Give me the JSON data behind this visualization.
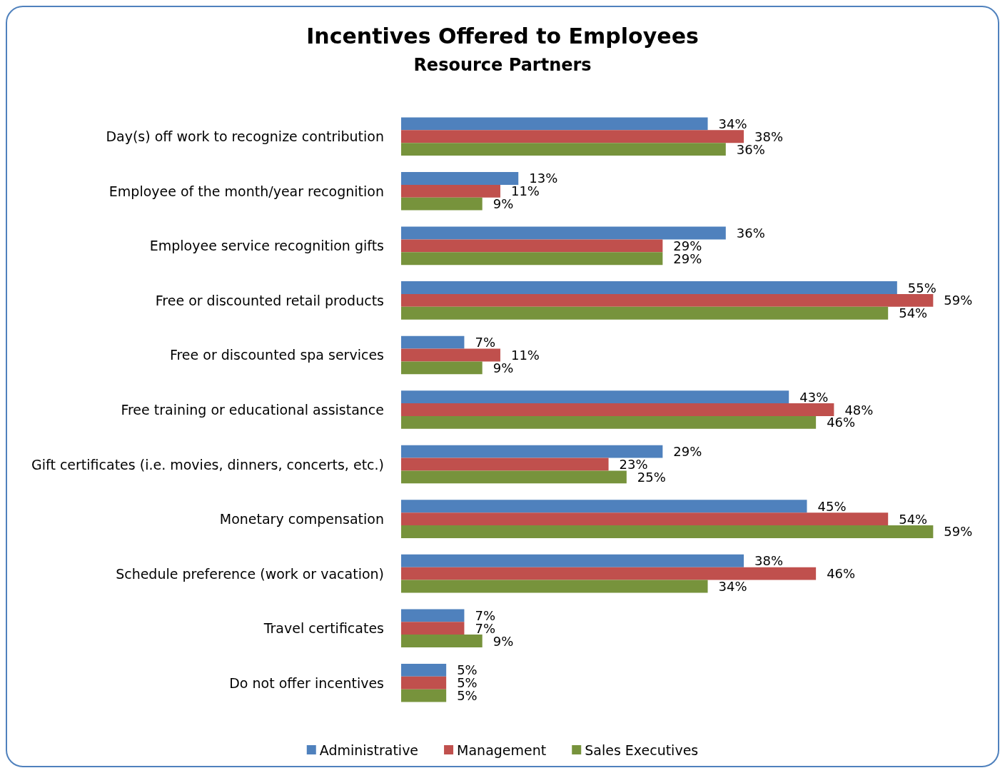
{
  "chart_data": {
    "type": "bar",
    "orientation": "horizontal",
    "title": "Incentives Offered to Employees",
    "subtitle": "Resource Partners",
    "categories": [
      "Day(s) off work to recognize contribution",
      "Employee of the month/year recognition",
      "Employee service recognition gifts",
      "Free or discounted retail products",
      "Free or discounted spa services",
      "Free training or educational assistance",
      "Gift certificates (i.e. movies, dinners, concerts, etc.)",
      "Monetary compensation",
      "Schedule preference (work or vacation)",
      "Travel certificates",
      "Do not offer incentives"
    ],
    "series": [
      {
        "name": "Administrative",
        "color": "#4f81bd",
        "values": [
          34,
          13,
          36,
          55,
          7,
          43,
          29,
          45,
          38,
          7,
          5
        ],
        "value_labels": [
          "34%",
          "13%",
          "36%",
          "55%",
          "7%",
          "43%",
          "29%",
          "45%",
          "38%",
          "7%",
          "5%"
        ]
      },
      {
        "name": "Management",
        "color": "#c0504d",
        "values": [
          38,
          11,
          29,
          59,
          11,
          48,
          23,
          54,
          46,
          7,
          5
        ],
        "value_labels": [
          "38%",
          "11%",
          "29%",
          "59%",
          "11%",
          "48%",
          "23%",
          "54%",
          "46%",
          "7%",
          "5%"
        ]
      },
      {
        "name": "Sales Executives",
        "color": "#77933c",
        "values": [
          36,
          9,
          29,
          54,
          9,
          46,
          25,
          59,
          34,
          9,
          5
        ],
        "value_labels": [
          "36%",
          "9%",
          "29%",
          "54%",
          "9%",
          "46%",
          "25%",
          "59%",
          "34%",
          "9%",
          "5%"
        ]
      }
    ],
    "legend": "bottom"
  }
}
